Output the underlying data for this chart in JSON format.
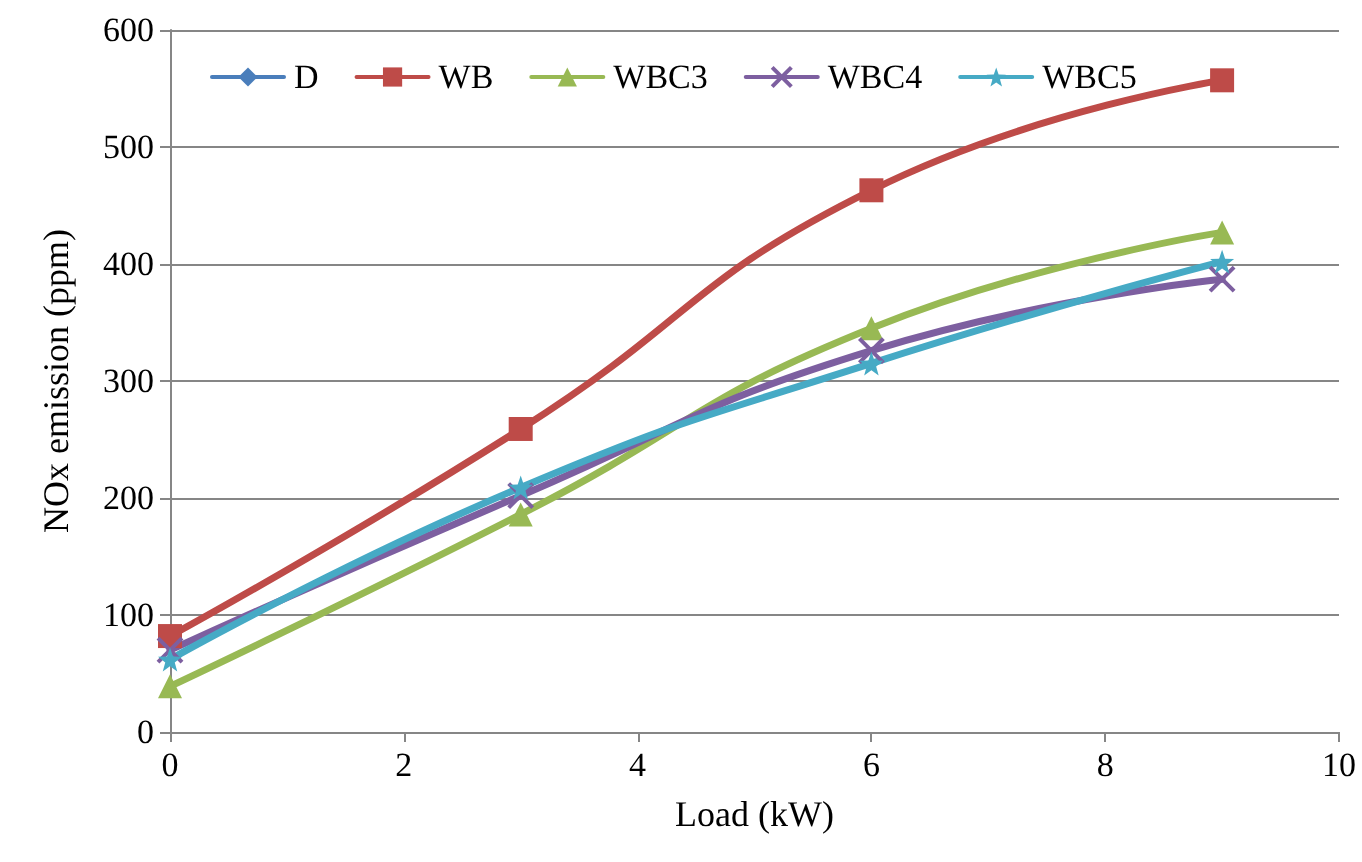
{
  "chart_data": {
    "type": "line",
    "xlabel": "Load (kW)",
    "ylabel": "NOx emission (ppm)",
    "x": [
      0,
      3,
      6,
      9
    ],
    "series": [
      {
        "name": "D",
        "color": "#4a7ebb",
        "marker": "diamond",
        "values": [
          null,
          null,
          null,
          null
        ]
      },
      {
        "name": "WB",
        "color": "#be4b48",
        "marker": "square",
        "values": [
          82,
          259,
          463,
          557
        ]
      },
      {
        "name": "WBC3",
        "color": "#98b954",
        "marker": "triangle",
        "values": [
          39,
          186,
          345,
          427
        ]
      },
      {
        "name": "WBC4",
        "color": "#7d5fa0",
        "marker": "cross",
        "values": [
          70,
          202,
          326,
          387
        ]
      },
      {
        "name": "WBC5",
        "color": "#46aac5",
        "marker": "star",
        "values": [
          62,
          209,
          315,
          402
        ]
      }
    ],
    "xlim": [
      0,
      10
    ],
    "xticks": [
      0,
      2,
      4,
      6,
      8,
      10
    ],
    "ylim": [
      0,
      600
    ],
    "yticks": [
      0,
      100,
      200,
      300,
      400,
      500,
      600
    ],
    "grid": "y",
    "legend": "top",
    "line_style": "solid"
  }
}
